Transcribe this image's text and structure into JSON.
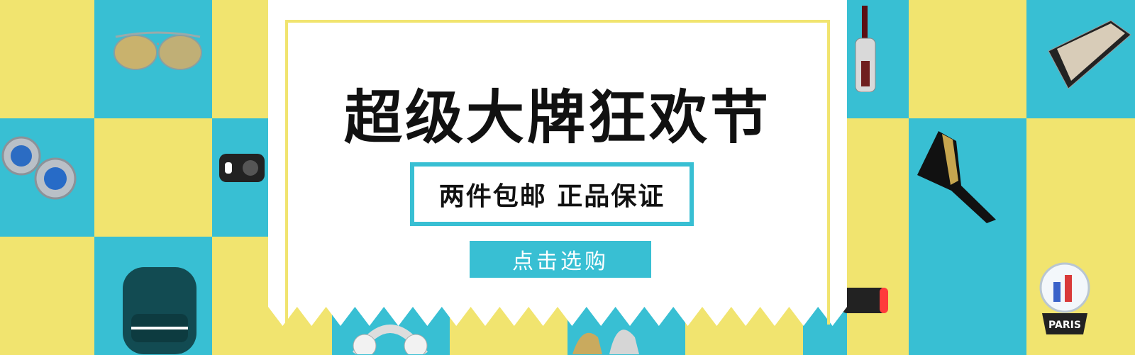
{
  "banner": {
    "title": "超级大牌狂欢节",
    "subtitle": "两件包邮 正品保证",
    "cta_label": "点击选购"
  },
  "colors": {
    "yellow": "#f1e46f",
    "blue": "#38bfd3",
    "white": "#ffffff",
    "text": "#111111"
  },
  "products": {
    "globe_label": "PARIS"
  }
}
